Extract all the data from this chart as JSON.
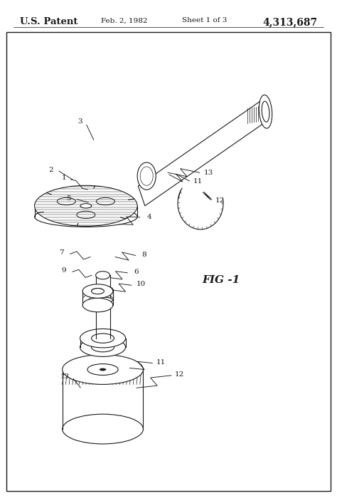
{
  "title_left": "U.S. Patent",
  "title_date": "Feb. 2, 1982",
  "title_sheet": "Sheet 1 of 3",
  "title_patent": "4,313,687",
  "fig_label": "FIG -1",
  "bg_color": "#ffffff",
  "line_color": "#1a1a1a"
}
